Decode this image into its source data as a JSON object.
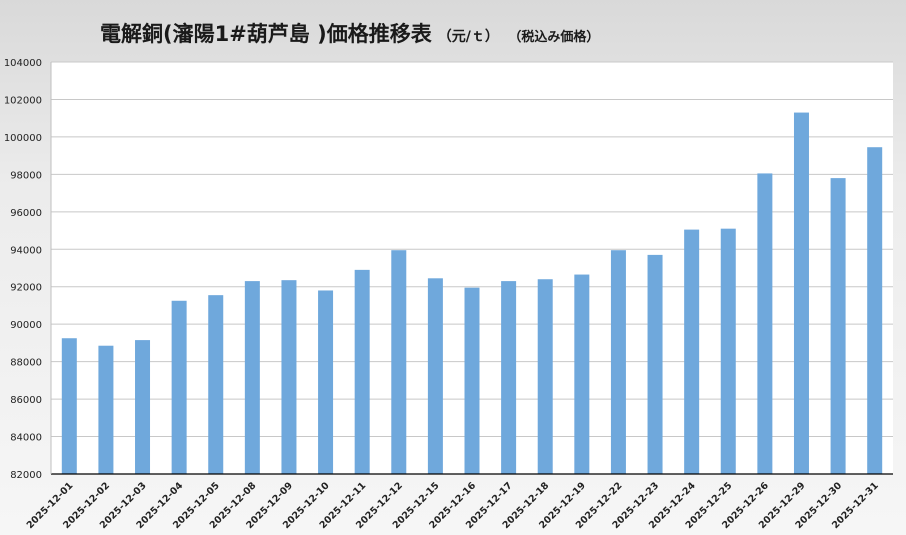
{
  "title": {
    "main": "電解銅(瀋陽1#葫芦島 )価格推移表",
    "unit": "（元/ｔ）",
    "note": "（税込み価格）"
  },
  "colors": {
    "bar": "#6fa8dc",
    "grid": "#c8c8c8",
    "axis": "#000000",
    "text": "#222222"
  },
  "chart_data": {
    "type": "bar",
    "categories": [
      "2025-12-01",
      "2025-12-02",
      "2025-12-03",
      "2025-12-04",
      "2025-12-05",
      "2025-12-08",
      "2025-12-09",
      "2025-12-10",
      "2025-12-11",
      "2025-12-12",
      "2025-12-15",
      "2025-12-16",
      "2025-12-17",
      "2025-12-18",
      "2025-12-19",
      "2025-12-22",
      "2025-12-23",
      "2025-12-24",
      "2025-12-25",
      "2025-12-26",
      "2025-12-29",
      "2025-12-30",
      "2025-12-31"
    ],
    "values": [
      89250,
      88850,
      89150,
      91250,
      91550,
      92300,
      92350,
      91800,
      92900,
      93950,
      92450,
      91950,
      92300,
      92400,
      92650,
      93950,
      93700,
      95050,
      95100,
      98050,
      101300,
      97800,
      99450
    ],
    "ylim": [
      82000,
      104000
    ],
    "yticks": [
      82000,
      84000,
      86000,
      88000,
      90000,
      92000,
      94000,
      96000,
      98000,
      100000,
      102000,
      104000
    ],
    "grid": true,
    "legend": "none"
  }
}
